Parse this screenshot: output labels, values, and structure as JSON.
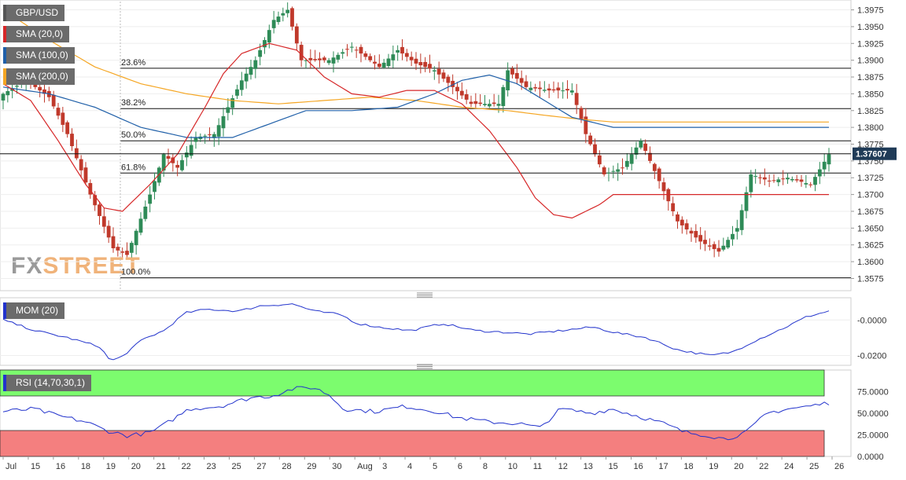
{
  "symbol": "GBP/USD",
  "indicators": {
    "sma20": {
      "label": "SMA (20,0)",
      "color": "#d62728"
    },
    "sma100": {
      "label": "SMA (100,0)",
      "color": "#1f5fa8"
    },
    "sma200": {
      "label": "SMA (200,0)",
      "color": "#f5a623"
    },
    "mom": {
      "label": "MOM (20)",
      "color": "#2233cc"
    },
    "rsi": {
      "label": "RSI (14,70,30,1)",
      "color": "#2233cc",
      "overbought": 70,
      "oversold": 30
    }
  },
  "watermark": {
    "fx": "FX",
    "street": "STREET"
  },
  "colors": {
    "bull": "#2e8b57",
    "bear": "#c0392b",
    "rsi_over": "#7cfc6e",
    "rsi_under": "#f47f7f",
    "grid": "#eeeeee"
  },
  "current_price": "1.37607",
  "chart_data": {
    "type": "candlestick",
    "price_axis": {
      "range": [
        1.3565,
        1.3985
      ],
      "ticks": [
        "1.3975",
        "1.3950",
        "1.3925",
        "1.3900",
        "1.3875",
        "1.3850",
        "1.3825",
        "1.3800",
        "1.3775",
        "1.3750",
        "1.3725",
        "1.3700",
        "1.3675",
        "1.3650",
        "1.3625",
        "1.3600",
        "1.3575"
      ]
    },
    "fibonacci": [
      {
        "label": "23.6%",
        "value": 1.3888
      },
      {
        "label": "38.2%",
        "value": 1.3828
      },
      {
        "label": "50.0%",
        "value": 1.378
      },
      {
        "label": "61.8%",
        "value": 1.3732
      },
      {
        "label": "100.0%",
        "value": 1.3576
      }
    ],
    "x_labels": [
      "Jul",
      "15",
      "16",
      "18",
      "19",
      "20",
      "21",
      "22",
      "23",
      "25",
      "27",
      "28",
      "29",
      "30",
      "Aug",
      "3",
      "4",
      "5",
      "6",
      "8",
      "10",
      "11",
      "12",
      "13",
      "15",
      "16",
      "17",
      "18",
      "19",
      "20",
      "22",
      "24",
      "25",
      "26"
    ],
    "sma20_anchors": [
      [
        0,
        1.3865
      ],
      [
        6,
        1.384
      ],
      [
        12,
        1.378
      ],
      [
        18,
        1.3715
      ],
      [
        22,
        1.368
      ],
      [
        26,
        1.3675
      ],
      [
        32,
        1.3715
      ],
      [
        38,
        1.376
      ],
      [
        44,
        1.383
      ],
      [
        48,
        1.388
      ],
      [
        52,
        1.391
      ],
      [
        58,
        1.3925
      ],
      [
        64,
        1.3915
      ],
      [
        70,
        1.3875
      ],
      [
        76,
        1.385
      ],
      [
        82,
        1.3845
      ],
      [
        88,
        1.3855
      ],
      [
        94,
        1.3855
      ],
      [
        100,
        1.3835
      ],
      [
        106,
        1.3795
      ],
      [
        112,
        1.374
      ],
      [
        116,
        1.3695
      ],
      [
        120,
        1.367
      ],
      [
        124,
        1.3665
      ],
      [
        130,
        1.3685
      ],
      [
        133,
        1.37
      ]
    ],
    "sma100_anchors": [
      [
        0,
        1.386
      ],
      [
        10,
        1.385
      ],
      [
        20,
        1.383
      ],
      [
        30,
        1.38
      ],
      [
        40,
        1.3785
      ],
      [
        50,
        1.3785
      ],
      [
        56,
        1.38
      ],
      [
        66,
        1.3825
      ],
      [
        76,
        1.3825
      ],
      [
        86,
        1.383
      ],
      [
        94,
        1.385
      ],
      [
        100,
        1.387
      ],
      [
        106,
        1.3878
      ],
      [
        112,
        1.3865
      ],
      [
        118,
        1.384
      ],
      [
        124,
        1.3815
      ],
      [
        133,
        1.38
      ]
    ],
    "sma200_anchors": [
      [
        0,
        1.3975
      ],
      [
        10,
        1.393
      ],
      [
        20,
        1.389
      ],
      [
        30,
        1.3865
      ],
      [
        40,
        1.385
      ],
      [
        50,
        1.384
      ],
      [
        60,
        1.3835
      ],
      [
        70,
        1.384
      ],
      [
        80,
        1.3845
      ],
      [
        90,
        1.384
      ],
      [
        100,
        1.383
      ],
      [
        110,
        1.3825
      ],
      [
        118,
        1.3818
      ],
      [
        126,
        1.3812
      ],
      [
        133,
        1.3808
      ]
    ],
    "close_anchors": [
      [
        0,
        1.385
      ],
      [
        5,
        1.387
      ],
      [
        10,
        1.3845
      ],
      [
        14,
        1.379
      ],
      [
        19,
        1.37
      ],
      [
        24,
        1.362
      ],
      [
        27,
        1.361
      ],
      [
        32,
        1.37
      ],
      [
        35,
        1.376
      ],
      [
        38,
        1.374
      ],
      [
        42,
        1.3785
      ],
      [
        46,
        1.379
      ],
      [
        52,
        1.387
      ],
      [
        55,
        1.39
      ],
      [
        59,
        1.396
      ],
      [
        62,
        1.3975
      ],
      [
        65,
        1.39
      ],
      [
        71,
        1.39
      ],
      [
        76,
        1.392
      ],
      [
        82,
        1.389
      ],
      [
        86,
        1.3915
      ],
      [
        90,
        1.3895
      ],
      [
        94,
        1.3885
      ],
      [
        98,
        1.386
      ],
      [
        102,
        1.3835
      ],
      [
        108,
        1.3835
      ],
      [
        110,
        1.3885
      ],
      [
        114,
        1.386
      ],
      [
        119,
        1.3855
      ],
      [
        124,
        1.3855
      ],
      [
        127,
        1.379
      ],
      [
        131,
        1.373
      ],
      [
        135,
        1.374
      ],
      [
        139,
        1.378
      ],
      [
        143,
        1.372
      ],
      [
        147,
        1.366
      ],
      [
        152,
        1.363
      ],
      [
        156,
        1.3615
      ],
      [
        160,
        1.365
      ],
      [
        163,
        1.373
      ],
      [
        167,
        1.372
      ],
      [
        171,
        1.3725
      ],
      [
        176,
        1.3715
      ],
      [
        180,
        1.376
      ]
    ],
    "mom_axis": {
      "range": [
        -0.0255,
        0.0125
      ],
      "ticks": [
        "-0.0000",
        "-0.0200"
      ]
    },
    "mom_anchors": [
      [
        0,
        -0.0
      ],
      [
        6,
        -0.006
      ],
      [
        12,
        -0.01
      ],
      [
        18,
        -0.015
      ],
      [
        20,
        -0.023
      ],
      [
        22,
        -0.021
      ],
      [
        26,
        -0.011
      ],
      [
        30,
        -0.006
      ],
      [
        34,
        0.004
      ],
      [
        38,
        0.006
      ],
      [
        44,
        0.005
      ],
      [
        48,
        0.008
      ],
      [
        54,
        0.009
      ],
      [
        58,
        0.005
      ],
      [
        63,
        0.003
      ],
      [
        66,
        -0.002
      ],
      [
        70,
        -0.004
      ],
      [
        76,
        -0.006
      ],
      [
        82,
        -0.002
      ],
      [
        88,
        -0.006
      ],
      [
        94,
        -0.007
      ],
      [
        98,
        -0.008
      ],
      [
        104,
        -0.006
      ],
      [
        110,
        -0.004
      ],
      [
        114,
        -0.007
      ],
      [
        120,
        -0.01
      ],
      [
        126,
        -0.017
      ],
      [
        132,
        -0.02
      ],
      [
        136,
        -0.018
      ],
      [
        140,
        -0.012
      ],
      [
        146,
        -0.004
      ],
      [
        150,
        0.002
      ],
      [
        154,
        0.005
      ]
    ],
    "rsi_axis": {
      "range": [
        0,
        100
      ],
      "ticks": [
        "75.0000",
        "50.0000",
        "25.0000",
        "0.0000"
      ]
    },
    "rsi_anchors": [
      [
        0,
        52
      ],
      [
        6,
        55
      ],
      [
        10,
        48
      ],
      [
        16,
        40
      ],
      [
        20,
        30
      ],
      [
        24,
        24
      ],
      [
        28,
        27
      ],
      [
        30,
        32
      ],
      [
        36,
        55
      ],
      [
        42,
        58
      ],
      [
        48,
        68
      ],
      [
        52,
        70
      ],
      [
        56,
        78
      ],
      [
        60,
        80
      ],
      [
        63,
        72
      ],
      [
        66,
        55
      ],
      [
        72,
        52
      ],
      [
        78,
        58
      ],
      [
        84,
        52
      ],
      [
        88,
        45
      ],
      [
        94,
        40
      ],
      [
        100,
        38
      ],
      [
        104,
        33
      ],
      [
        108,
        55
      ],
      [
        114,
        50
      ],
      [
        118,
        55
      ],
      [
        124,
        45
      ],
      [
        128,
        38
      ],
      [
        132,
        28
      ],
      [
        136,
        25
      ],
      [
        140,
        20
      ],
      [
        144,
        28
      ],
      [
        148,
        50
      ],
      [
        152,
        55
      ],
      [
        156,
        58
      ],
      [
        160,
        62
      ]
    ]
  }
}
